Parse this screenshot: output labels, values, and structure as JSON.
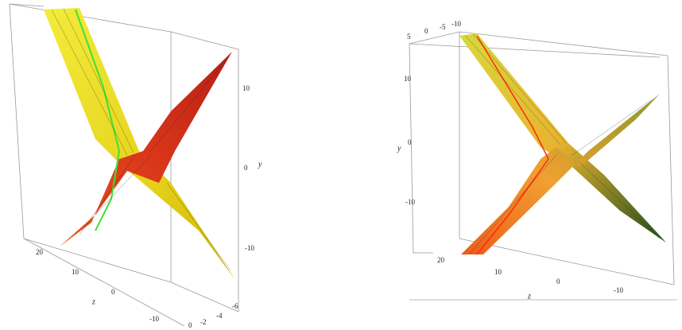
{
  "plots": [
    {
      "y_label": "y",
      "y_ticks": [
        "10",
        "0",
        "-10"
      ],
      "z_label": "z",
      "z_ticks": [
        "20",
        "10",
        "0",
        "-10"
      ],
      "x_ticks": [
        "0",
        "-2",
        "-4",
        "-6"
      ]
    },
    {
      "y_label": "y",
      "y_ticks": [
        "10",
        "0",
        "-10"
      ],
      "z_label": "z",
      "z_ticks": [
        "20",
        "10",
        "0",
        "-10"
      ],
      "x_ticks": [
        "5",
        "0",
        "-5",
        "-10"
      ]
    }
  ]
}
